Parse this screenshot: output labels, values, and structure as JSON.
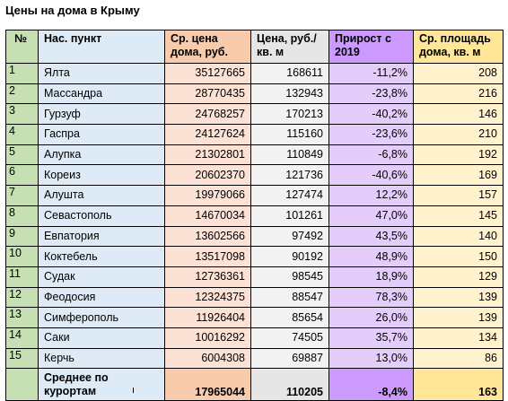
{
  "title": "Цены на дома в Крыму",
  "headers": {
    "num": "№",
    "name": "Нас. пункт",
    "price": "Ср. цена дома, руб.",
    "ppm": "Цена, руб./кв. м",
    "growth": "Прирост с 2019",
    "area": "Ср. площадь дома, кв. м"
  },
  "rows": [
    {
      "num": "1",
      "name": "Ялта",
      "price": "35127665",
      "ppm": "168611",
      "growth": "-11,2%",
      "area": "208"
    },
    {
      "num": "2",
      "name": "Массандра",
      "price": "28770435",
      "ppm": "132943",
      "growth": "-23,8%",
      "area": "216"
    },
    {
      "num": "3",
      "name": "Гурзуф",
      "price": "24768257",
      "ppm": "170213",
      "growth": "-40,2%",
      "area": "146"
    },
    {
      "num": "4",
      "name": "Гаспра",
      "price": "24127624",
      "ppm": "115160",
      "growth": "-23,6%",
      "area": "210"
    },
    {
      "num": "5",
      "name": "Алупка",
      "price": "21302801",
      "ppm": "110849",
      "growth": "-6,8%",
      "area": "192"
    },
    {
      "num": "6",
      "name": "Кореиз",
      "price": "20602370",
      "ppm": "121736",
      "growth": "-40,6%",
      "area": "169"
    },
    {
      "num": "7",
      "name": "Алушта",
      "price": "19979066",
      "ppm": "127474",
      "growth": "12,2%",
      "area": "157"
    },
    {
      "num": "8",
      "name": "Севастополь",
      "price": "14670034",
      "ppm": "101261",
      "growth": "47,0%",
      "area": "145"
    },
    {
      "num": "9",
      "name": "Евпатория",
      "price": "13602566",
      "ppm": "97492",
      "growth": "43,5%",
      "area": "140"
    },
    {
      "num": "10",
      "name": "Коктебель",
      "price": "13517098",
      "ppm": "90192",
      "growth": "48,9%",
      "area": "150"
    },
    {
      "num": "11",
      "name": "Судак",
      "price": "12736361",
      "ppm": "98545",
      "growth": "18,9%",
      "area": "129"
    },
    {
      "num": "12",
      "name": "Феодосия",
      "price": "12324375",
      "ppm": "88547",
      "growth": "78,3%",
      "area": "139"
    },
    {
      "num": "13",
      "name": "Симферополь",
      "price": "11926404",
      "ppm": "85654",
      "growth": "26,0%",
      "area": "139"
    },
    {
      "num": "14",
      "name": "Саки",
      "price": "10016292",
      "ppm": "74505",
      "growth": "35,7%",
      "area": "134"
    },
    {
      "num": "15",
      "name": "Керчь",
      "price": "6004308",
      "ppm": "69887",
      "growth": "13,0%",
      "area": "86"
    }
  ],
  "footer": {
    "num": "",
    "name": "Среднее по курортам",
    "price": "17965044",
    "ppm": "110205",
    "growth": "-8,4%",
    "area": "163"
  }
}
